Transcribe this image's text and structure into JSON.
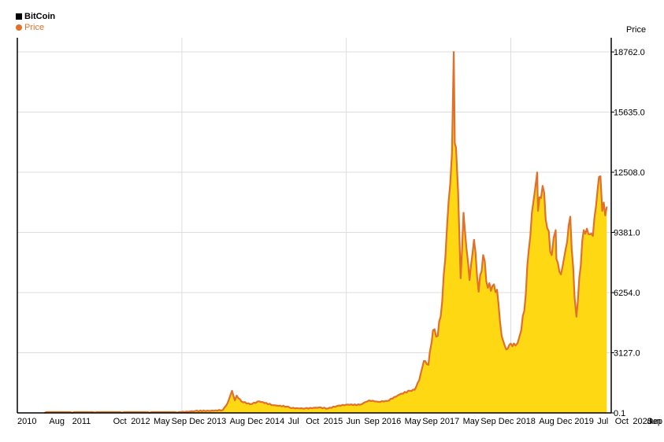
{
  "legend": {
    "title": "BitCoin",
    "series_label": "Price"
  },
  "chart_data": {
    "type": "area",
    "title": "BitCoin",
    "ylabel": "Price",
    "ylim": [
      0,
      19500
    ],
    "y_ticks": [
      0.1,
      3127.0,
      6254.0,
      9381.0,
      12508.0,
      15635.0,
      18762.0
    ],
    "y_tick_labels": [
      "0.1",
      "3127.0",
      "6254.0",
      "9381.0",
      "12508.0",
      "15635.0",
      "18762.0"
    ],
    "x_tick_labels": [
      "2010",
      "Aug",
      "2011",
      "Oct",
      "2012",
      "May",
      "Sep",
      "Dec",
      "2013",
      "Aug",
      "Dec",
      "2014",
      "Jul",
      "Oct",
      "2015",
      "Jun",
      "Sep",
      "2016",
      "May",
      "Sep",
      "2017",
      "May",
      "Sep",
      "Dec",
      "2018",
      "Aug",
      "Dec",
      "2019",
      "Jul",
      "Oct",
      "2020",
      "Jun",
      "Sep"
    ],
    "x_tick_dates": [
      "2010-01",
      "2010-08",
      "2011-01",
      "2011-10",
      "2012-01",
      "2012-05",
      "2012-09",
      "2012-12",
      "2013-01",
      "2013-08",
      "2013-12",
      "2014-01",
      "2014-07",
      "2014-10",
      "2015-01",
      "2015-06",
      "2015-09",
      "2016-01",
      "2016-05",
      "2016-09",
      "2017-01",
      "2017-05",
      "2017-09",
      "2017-12",
      "2018-01",
      "2018-08",
      "2018-12",
      "2019-01",
      "2019-07",
      "2019-10",
      "2020-01",
      "2020-06",
      "2020-09"
    ],
    "vertical_gridlines_at": [
      "2013-01",
      "2016-01",
      "2019-01"
    ],
    "grid": true,
    "legend_position": "top-left",
    "y_axis_position": "right",
    "colors": {
      "fill": "#FFD814",
      "line": "#E0702A",
      "grid": "#DDDDDD",
      "axis": "#000000"
    },
    "series": [
      {
        "name": "Price",
        "points": [
          [
            "2010-07",
            0.1
          ],
          [
            "2011-01",
            0.3
          ],
          [
            "2011-06",
            15
          ],
          [
            "2011-12",
            3
          ],
          [
            "2012-06",
            6
          ],
          [
            "2012-12",
            13
          ],
          [
            "2013-04",
            100
          ],
          [
            "2013-08",
            110
          ],
          [
            "2013-10",
            150
          ],
          [
            "2013-11",
            500
          ],
          [
            "2013-12",
            1150
          ],
          [
            "2013-12-20",
            650
          ],
          [
            "2014-01",
            900
          ],
          [
            "2014-02",
            600
          ],
          [
            "2014-04",
            450
          ],
          [
            "2014-06",
            600
          ],
          [
            "2014-09",
            400
          ],
          [
            "2014-12",
            330
          ],
          [
            "2015-01",
            250
          ],
          [
            "2015-04",
            230
          ],
          [
            "2015-07",
            280
          ],
          [
            "2015-09",
            230
          ],
          [
            "2015-11",
            360
          ],
          [
            "2016-01",
            430
          ],
          [
            "2016-04",
            420
          ],
          [
            "2016-06",
            650
          ],
          [
            "2016-08",
            580
          ],
          [
            "2016-10",
            620
          ],
          [
            "2017-01",
            1000
          ],
          [
            "2017-03",
            1150
          ],
          [
            "2017-04",
            1200
          ],
          [
            "2017-05",
            1700
          ],
          [
            "2017-06",
            2700
          ],
          [
            "2017-07",
            2500
          ],
          [
            "2017-08",
            4300
          ],
          [
            "2017-09",
            4000
          ],
          [
            "2017-10",
            5800
          ],
          [
            "2017-11",
            9500
          ],
          [
            "2017-12-05",
            13500
          ],
          [
            "2017-12-17",
            18762
          ],
          [
            "2017-12-24",
            14000
          ],
          [
            "2018-01",
            13800
          ],
          [
            "2018-01-15",
            11500
          ],
          [
            "2018-02",
            7000
          ],
          [
            "2018-02-20",
            10400
          ],
          [
            "2018-03",
            9500
          ],
          [
            "2018-04",
            6900
          ],
          [
            "2018-05",
            9000
          ],
          [
            "2018-06",
            6300
          ],
          [
            "2018-07",
            8200
          ],
          [
            "2018-08",
            6500
          ],
          [
            "2018-09",
            6600
          ],
          [
            "2018-10",
            6400
          ],
          [
            "2018-11",
            4000
          ],
          [
            "2018-12",
            3300
          ],
          [
            "2019-01",
            3600
          ],
          [
            "2019-02",
            3500
          ],
          [
            "2019-03",
            4000
          ],
          [
            "2019-04",
            5300
          ],
          [
            "2019-05",
            8500
          ],
          [
            "2019-06",
            11000
          ],
          [
            "2019-06-26",
            12500
          ],
          [
            "2019-07",
            10500
          ],
          [
            "2019-08",
            11800
          ],
          [
            "2019-09",
            9600
          ],
          [
            "2019-10",
            8200
          ],
          [
            "2019-10-27",
            9500
          ],
          [
            "2019-11",
            8000
          ],
          [
            "2019-12",
            7200
          ],
          [
            "2020-01",
            8500
          ],
          [
            "2020-02",
            10200
          ],
          [
            "2020-03",
            6000
          ],
          [
            "2020-03-13",
            5000
          ],
          [
            "2020-04",
            7000
          ],
          [
            "2020-05",
            9500
          ],
          [
            "2020-06",
            9300
          ],
          [
            "2020-07",
            9200
          ],
          [
            "2020-08",
            11600
          ],
          [
            "2020-08-20",
            12300
          ],
          [
            "2020-09",
            10500
          ],
          [
            "2020-10",
            10700
          ]
        ]
      }
    ]
  }
}
